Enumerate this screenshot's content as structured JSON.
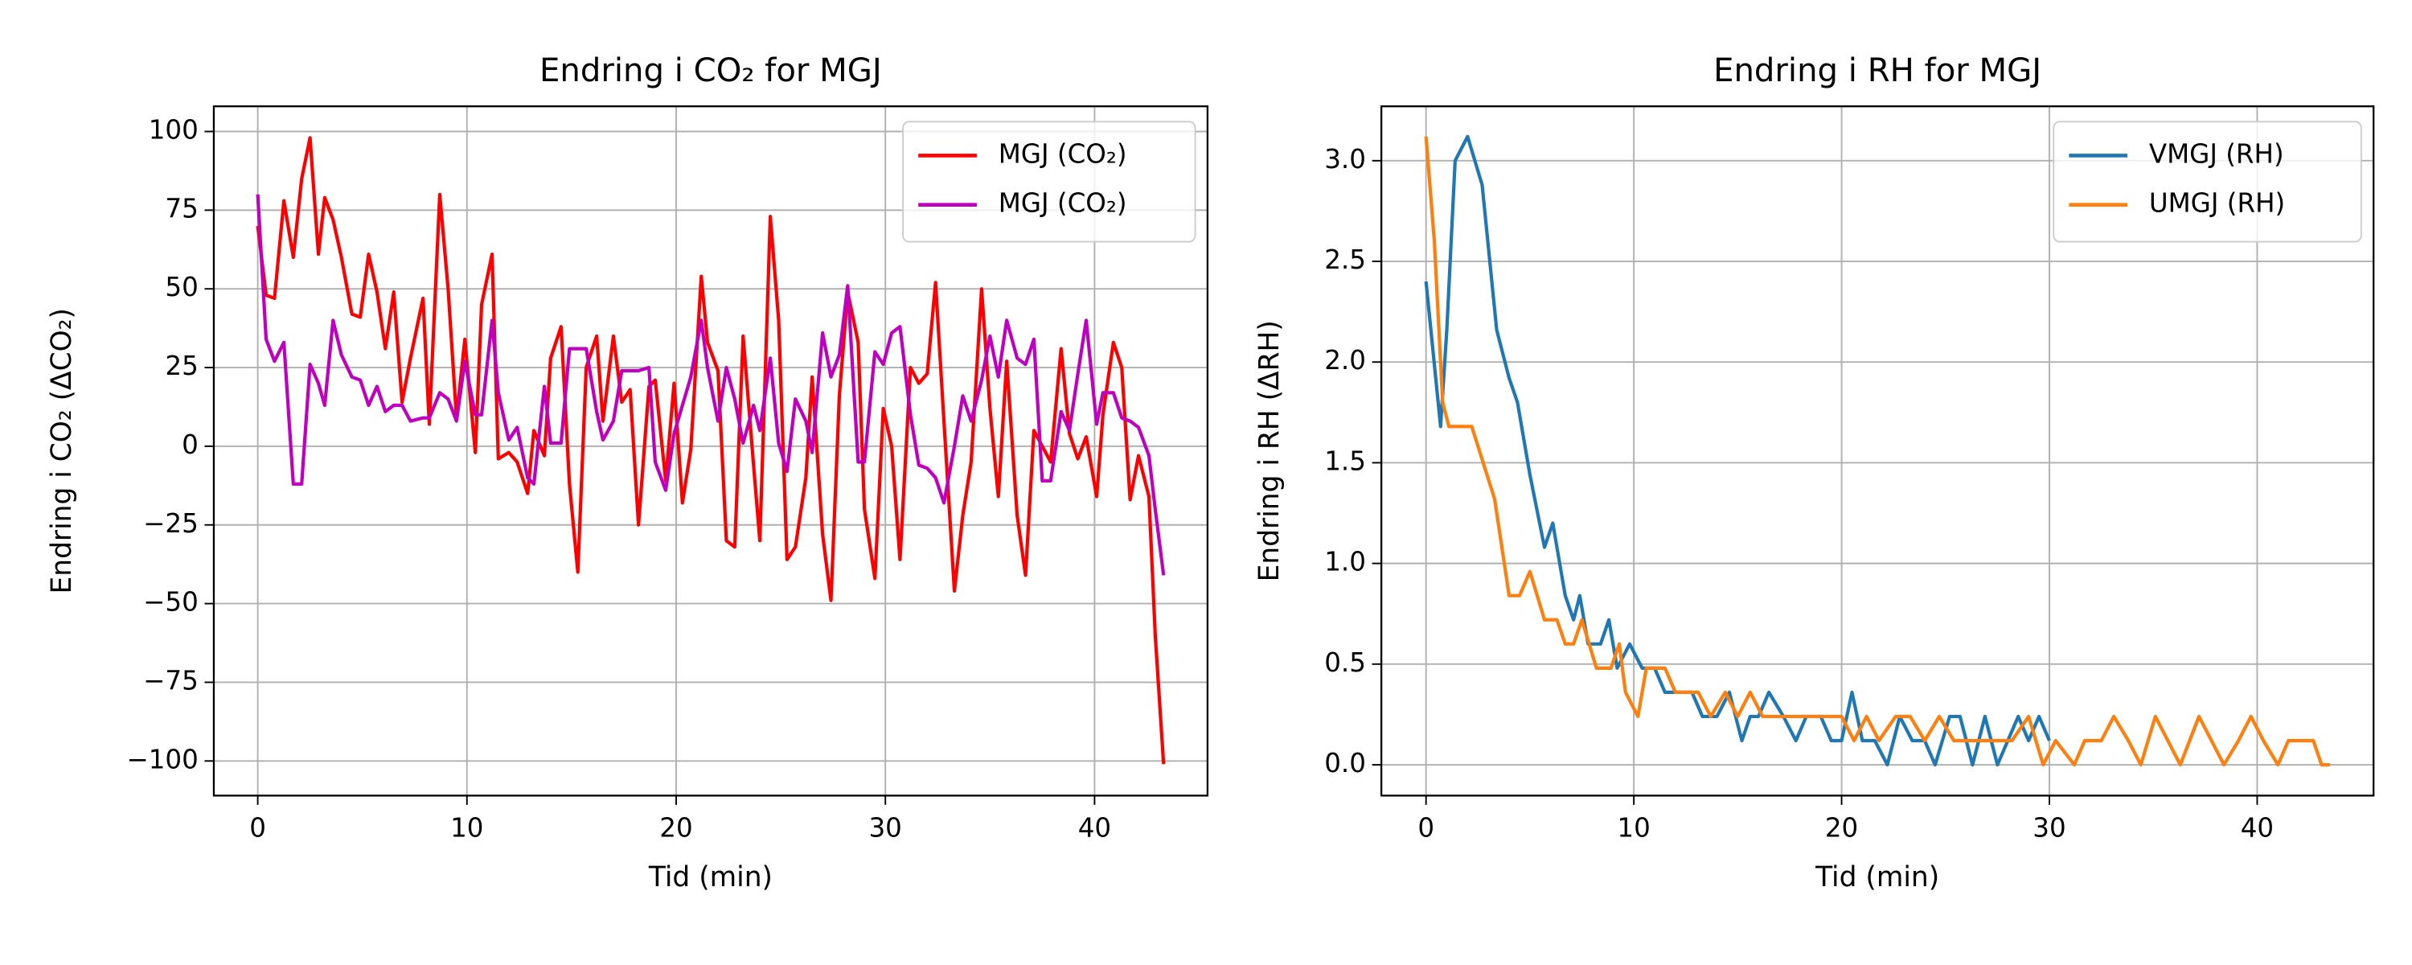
{
  "chart_data": [
    {
      "type": "line",
      "title": "Endring i CO₂ for MGJ",
      "xlabel": "Tid (min)",
      "ylabel": "Endring i CO₂ (ΔCO₂)",
      "xlim": [
        -2.1,
        45.4
      ],
      "ylim": [
        -111,
        108
      ],
      "xticks": [
        0,
        10,
        20,
        30,
        40
      ],
      "yticks": [
        {
          "value": -100,
          "label": "−100"
        },
        {
          "value": -75,
          "label": "−75"
        },
        {
          "value": -50,
          "label": "−50"
        },
        {
          "value": -25,
          "label": "−25"
        },
        0,
        25,
        50,
        75,
        100
      ],
      "grid": true,
      "legend": "upper right",
      "series": [
        {
          "name": "MGJ (CO₂)",
          "color": "#ff0000",
          "x": [
            0,
            0.4,
            0.8,
            1.25,
            1.7,
            2.1,
            2.5,
            2.9,
            3.2,
            3.6,
            4,
            4.5,
            4.9,
            5.3,
            5.7,
            6.1,
            6.5,
            6.9,
            7.3,
            7.9,
            8.2,
            8.7,
            9.1,
            9.5,
            9.9,
            10.4,
            10.7,
            11.2,
            11.5,
            12,
            12.4,
            12.9,
            13.2,
            13.7,
            14,
            14.5,
            14.9,
            15.3,
            15.7,
            16.2,
            16.5,
            17,
            17.4,
            17.8,
            18.2,
            18.7,
            19,
            19.5,
            19.9,
            20.3,
            20.7,
            21.2,
            21.5,
            22,
            22.4,
            22.8,
            23.2,
            23.7,
            24,
            24.5,
            24.9,
            25.3,
            25.7,
            26.2,
            26.5,
            27,
            27.4,
            27.8,
            28.2,
            28.7,
            29,
            29.5,
            29.9,
            30.3,
            30.7,
            31.2,
            31.6,
            32,
            32.4,
            32.8,
            33.3,
            33.7,
            34.1,
            34.6,
            35,
            35.4,
            35.8,
            36.3,
            36.7,
            37.1,
            37.5,
            37.9,
            38.4,
            38.8,
            39.2,
            39.6,
            40.1,
            40.4,
            40.9,
            41.3,
            41.7,
            42.1,
            42.6,
            42.9,
            43.3
          ],
          "values": [
            70,
            48,
            47,
            78,
            60,
            85,
            98,
            61,
            79,
            72,
            60,
            42,
            41,
            61,
            49,
            31,
            49,
            14,
            28,
            47,
            7,
            80,
            50,
            9,
            34,
            -2,
            45,
            61,
            -4,
            -2,
            -5,
            -15,
            5,
            -3,
            28,
            38,
            -12,
            -40,
            25,
            35,
            8,
            35,
            14,
            18,
            -25,
            19,
            21,
            -11,
            20,
            -18,
            -1,
            54,
            33,
            24,
            -30,
            -32,
            35,
            -6,
            -30,
            73,
            40,
            -36,
            -32,
            -10,
            22,
            -28,
            -49,
            16,
            49,
            33,
            -20,
            -42,
            12,
            0,
            -36,
            25,
            20,
            23,
            52,
            8,
            -46,
            -22,
            -5,
            50,
            12,
            -16,
            27,
            -22,
            -41,
            5,
            0,
            -5,
            31,
            4,
            -4,
            3,
            -16,
            10,
            33,
            25,
            -17,
            -3,
            -16,
            -60,
            -101
          ]
        },
        {
          "name": "MGJ (CO₂)",
          "color": "#bf00bf",
          "x": [
            0,
            0.4,
            0.8,
            1.25,
            1.7,
            2.1,
            2.5,
            2.9,
            3.2,
            3.6,
            4,
            4.5,
            4.9,
            5.3,
            5.7,
            6.1,
            6.5,
            6.9,
            7.3,
            7.9,
            8.2,
            8.7,
            9.1,
            9.5,
            9.9,
            10.4,
            10.7,
            11.2,
            11.5,
            12,
            12.4,
            12.9,
            13.2,
            13.7,
            14,
            14.5,
            14.9,
            15.3,
            15.7,
            16.2,
            16.5,
            17,
            17.4,
            17.8,
            18.2,
            18.7,
            19,
            19.5,
            19.9,
            20.3,
            20.7,
            21.2,
            21.5,
            22,
            22.4,
            22.8,
            23.2,
            23.7,
            24,
            24.5,
            24.9,
            25.3,
            25.7,
            26.2,
            26.5,
            27,
            27.4,
            27.8,
            28.2,
            28.7,
            29,
            29.5,
            29.9,
            30.3,
            30.7,
            31.2,
            31.6,
            32,
            32.4,
            32.8,
            33.3,
            33.7,
            34.1,
            34.6,
            35,
            35.4,
            35.8,
            36.3,
            36.7,
            37.1,
            37.5,
            37.9,
            38.4,
            38.8,
            39.2,
            39.6,
            40.1,
            40.4,
            40.9,
            41.3,
            41.7,
            42.1,
            42.6,
            42.9,
            43.3
          ],
          "values": [
            80,
            34,
            27,
            33,
            -12,
            -12,
            26,
            20,
            13,
            40,
            29,
            22,
            21,
            13,
            19,
            11,
            13,
            13,
            8,
            9,
            9,
            17,
            15,
            8,
            27,
            10,
            10,
            40,
            17,
            2,
            6,
            -10,
            -12,
            19,
            1,
            1,
            31,
            31,
            31,
            11,
            2,
            8,
            24,
            24,
            24,
            25,
            -5,
            -14,
            4,
            13,
            22,
            40,
            25,
            8,
            25,
            15,
            1,
            13,
            5,
            28,
            1,
            -8,
            15,
            8,
            -2,
            36,
            22,
            29,
            51,
            -5,
            -5,
            30,
            26,
            36,
            38,
            10,
            -6,
            -7,
            -10,
            -18,
            0,
            16,
            8,
            21,
            35,
            22,
            40,
            28,
            26,
            34,
            -11,
            -11,
            11,
            5,
            23,
            40,
            7,
            17,
            17,
            9,
            8,
            6,
            -3,
            -20,
            -41
          ]
        }
      ]
    },
    {
      "type": "line",
      "title": "Endring i RH for MGJ",
      "xlabel": "Tid (min)",
      "ylabel": "Endring i RH (ΔRH)",
      "xlim": [
        -2.15,
        45.6
      ],
      "ylim": [
        -0.153,
        3.27
      ],
      "xticks": [
        0,
        10,
        20,
        30,
        40
      ],
      "yticks": [
        {
          "value": 0,
          "label": "0.0"
        },
        0.5,
        {
          "value": 1,
          "label": "1.0"
        },
        1.5,
        {
          "value": 2,
          "label": "2.0"
        },
        2.5,
        {
          "value": 3,
          "label": "3.0"
        }
      ],
      "grid": true,
      "legend": "upper right",
      "series": [
        {
          "name": "VMGJ (RH)",
          "color": "#1f77b4",
          "x": [
            0,
            0.7,
            1.0,
            1.4,
            2.0,
            2.7,
            3.4,
            4.0,
            4.4,
            5.0,
            5.7,
            6.1,
            6.7,
            7.1,
            7.4,
            7.8,
            8.4,
            8.8,
            9.2,
            9.8,
            10.4,
            11.0,
            11.5,
            12,
            12.8,
            13.3,
            14,
            14.6,
            15.2,
            15.6,
            16,
            16.5,
            17.2,
            17.8,
            18.3,
            19,
            19.5,
            20,
            20.5,
            21,
            21.6,
            22.2,
            22.8,
            23.4,
            24,
            24.5,
            25.2,
            25.7,
            26.3,
            26.9,
            27.5,
            28,
            28.5,
            29,
            29.5,
            30
          ],
          "values": [
            2.4,
            1.68,
            2.16,
            3.0,
            3.12,
            2.88,
            2.16,
            1.92,
            1.8,
            1.44,
            1.08,
            1.2,
            0.84,
            0.72,
            0.84,
            0.6,
            0.6,
            0.72,
            0.48,
            0.6,
            0.48,
            0.48,
            0.36,
            0.36,
            0.36,
            0.24,
            0.24,
            0.36,
            0.12,
            0.24,
            0.24,
            0.36,
            0.24,
            0.12,
            0.24,
            0.24,
            0.12,
            0.12,
            0.36,
            0.12,
            0.12,
            0,
            0.24,
            0.12,
            0.12,
            0,
            0.24,
            0.24,
            0,
            0.24,
            0,
            0.12,
            0.24,
            0.12,
            0.24,
            0.12
          ]
        },
        {
          "name": "UMGJ (RH)",
          "color": "#ff7f0e",
          "x": [
            0,
            0.4,
            0.8,
            1.1,
            2.2,
            3.3,
            4.0,
            4.5,
            5.0,
            5.7,
            6.3,
            6.7,
            7.1,
            7.5,
            8.2,
            8.9,
            9.3,
            9.6,
            10.2,
            10.6,
            11.5,
            12,
            12.5,
            13.1,
            13.7,
            14.4,
            15,
            15.6,
            16.2,
            17,
            18,
            19,
            20,
            20.6,
            21.2,
            21.8,
            22.6,
            23.3,
            24,
            24.7,
            25.4,
            26,
            26.7,
            27.4,
            28.2,
            29,
            29.7,
            30.3,
            31.2,
            31.7,
            32.5,
            33.1,
            33.8,
            34.4,
            35.1,
            35.7,
            36.3,
            37.2,
            37.8,
            38.4,
            39.1,
            39.7,
            40.3,
            41,
            41.5,
            42.2,
            42.7,
            43.1,
            43.5
          ],
          "values": [
            3.12,
            2.6,
            1.8,
            1.68,
            1.68,
            1.32,
            0.84,
            0.84,
            0.96,
            0.72,
            0.72,
            0.6,
            0.6,
            0.72,
            0.48,
            0.48,
            0.6,
            0.36,
            0.24,
            0.48,
            0.48,
            0.36,
            0.36,
            0.36,
            0.24,
            0.36,
            0.24,
            0.36,
            0.24,
            0.24,
            0.24,
            0.24,
            0.24,
            0.12,
            0.24,
            0.12,
            0.24,
            0.24,
            0.12,
            0.24,
            0.12,
            0.12,
            0.12,
            0.12,
            0.12,
            0.24,
            0,
            0.12,
            0,
            0.12,
            0.12,
            0.24,
            0.12,
            0,
            0.24,
            0.12,
            0,
            0.24,
            0.12,
            0,
            0.12,
            0.24,
            0.12,
            0,
            0.12,
            0.12,
            0.12,
            0,
            0
          ]
        }
      ]
    }
  ]
}
